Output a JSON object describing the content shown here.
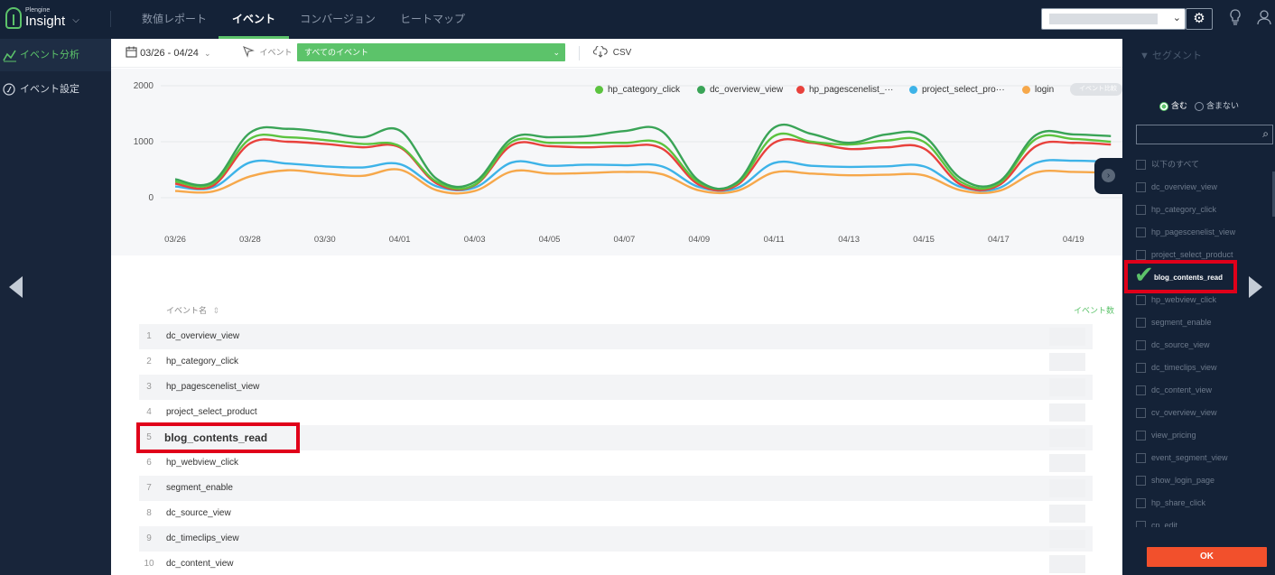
{
  "app": {
    "brand_small": "Plengine",
    "brand": "Insight"
  },
  "nav": {
    "tabs": [
      {
        "label": "数値レポート"
      },
      {
        "label": "イベント"
      },
      {
        "label": "コンバージョン"
      },
      {
        "label": "ヒートマップ"
      }
    ]
  },
  "sidebar": {
    "items": [
      {
        "label": "イベント分析"
      },
      {
        "label": "イベント設定"
      }
    ]
  },
  "toolbar": {
    "date_range": "03/26 - 04/24",
    "event_label": "イベント",
    "event_select": "すべてのイベント",
    "csv_label": "CSV"
  },
  "legend": {
    "compare_label": "イベント比較"
  },
  "colors": {
    "accent": "#5cc36a",
    "highlight": "#e0001a",
    "ok": "#f2502c",
    "nav_bg": "#142237"
  },
  "chart_data": {
    "type": "line",
    "x": [
      "03/26",
      "03/27",
      "03/28",
      "03/29",
      "03/30",
      "03/31",
      "04/01",
      "04/02",
      "04/03",
      "04/04",
      "04/05",
      "04/06",
      "04/07",
      "04/08",
      "04/09",
      "04/10",
      "04/11",
      "04/12",
      "04/13",
      "04/14",
      "04/15",
      "04/16",
      "04/17",
      "04/18",
      "04/19",
      "04/20"
    ],
    "x_tick_labels": [
      "03/26",
      "03/28",
      "03/30",
      "04/01",
      "04/03",
      "04/05",
      "04/07",
      "04/09",
      "04/11",
      "04/13",
      "04/15",
      "04/17",
      "04/19"
    ],
    "ylim": [
      0,
      2000
    ],
    "y_ticks": [
      0,
      1000,
      2000
    ],
    "series": [
      {
        "name": "hp_category_click",
        "legend_label": "hp_category_click",
        "color": "#5cc33f",
        "values": [
          290,
          250,
          1050,
          1080,
          1030,
          960,
          920,
          280,
          230,
          1000,
          980,
          980,
          980,
          960,
          270,
          250,
          1100,
          1000,
          950,
          1020,
          1000,
          280,
          250,
          1050,
          1050,
          1000
        ]
      },
      {
        "name": "dc_overview_view",
        "legend_label": "dc_overview_view",
        "color": "#3aa457",
        "values": [
          330,
          280,
          1160,
          1230,
          1170,
          1080,
          1200,
          330,
          280,
          1060,
          1080,
          1100,
          1190,
          1190,
          300,
          270,
          1250,
          1140,
          980,
          1130,
          1100,
          340,
          280,
          1120,
          1130,
          1100
        ]
      },
      {
        "name": "hp_pagescenelist_view",
        "legend_label": "hp_pagescenelist_···",
        "color": "#e8413c",
        "values": [
          250,
          210,
          970,
          1000,
          960,
          900,
          900,
          250,
          220,
          940,
          920,
          900,
          920,
          880,
          230,
          220,
          980,
          980,
          870,
          900,
          880,
          230,
          220,
          920,
          980,
          950
        ]
      },
      {
        "name": "project_select_product",
        "legend_label": "project_select_pro···",
        "color": "#3db3e8",
        "values": [
          200,
          180,
          630,
          610,
          560,
          540,
          600,
          200,
          180,
          630,
          570,
          590,
          580,
          560,
          190,
          170,
          620,
          570,
          550,
          560,
          560,
          190,
          170,
          620,
          660,
          640
        ]
      },
      {
        "name": "login",
        "legend_label": "login",
        "color": "#f6a84b",
        "values": [
          120,
          110,
          380,
          490,
          430,
          390,
          500,
          130,
          120,
          470,
          430,
          440,
          460,
          420,
          130,
          120,
          450,
          430,
          400,
          410,
          400,
          130,
          120,
          450,
          460,
          440
        ]
      }
    ]
  },
  "table": {
    "header_name": "イベント名",
    "header_count": "イベント数",
    "rows": [
      {
        "num": "1",
        "name": "dc_overview_view"
      },
      {
        "num": "2",
        "name": "hp_category_click"
      },
      {
        "num": "3",
        "name": "hp_pagescenelist_view"
      },
      {
        "num": "4",
        "name": "project_select_product"
      },
      {
        "num": "5",
        "name": "blog_contents_read"
      },
      {
        "num": "6",
        "name": "hp_webview_click"
      },
      {
        "num": "7",
        "name": "segment_enable"
      },
      {
        "num": "8",
        "name": "dc_source_view"
      },
      {
        "num": "9",
        "name": "dc_timeclips_view"
      },
      {
        "num": "10",
        "name": "dc_content_view"
      }
    ]
  },
  "segment": {
    "title": "セグメント",
    "include_label": "含む",
    "exclude_label": "含まない",
    "search_value": "",
    "items": [
      {
        "label": "以下のすべて",
        "checked": false
      },
      {
        "label": "dc_overview_view",
        "checked": false
      },
      {
        "label": "hp_category_click",
        "checked": false
      },
      {
        "label": "hp_pagescenelist_view",
        "checked": false
      },
      {
        "label": "project_select_product",
        "checked": false
      },
      {
        "label": "blog_contents_read",
        "checked": true
      },
      {
        "label": "hp_webview_click",
        "checked": false
      },
      {
        "label": "segment_enable",
        "checked": false
      },
      {
        "label": "dc_source_view",
        "checked": false
      },
      {
        "label": "dc_timeclips_view",
        "checked": false
      },
      {
        "label": "dc_content_view",
        "checked": false
      },
      {
        "label": "cv_overview_view",
        "checked": false
      },
      {
        "label": "view_pricing",
        "checked": false
      },
      {
        "label": "event_segment_view",
        "checked": false
      },
      {
        "label": "show_login_page",
        "checked": false
      },
      {
        "label": "hp_share_click",
        "checked": false
      },
      {
        "label": "cp_edit",
        "checked": false
      }
    ],
    "ok_label": "OK"
  },
  "icons": {
    "calendar": "calendar-icon",
    "cursor": "cursor-icon",
    "cloud": "cloud-download-icon",
    "gear": "gear-icon",
    "bulb": "lightbulb-icon",
    "user": "user-icon",
    "search": "search-icon",
    "check": "checkmark-icon"
  }
}
